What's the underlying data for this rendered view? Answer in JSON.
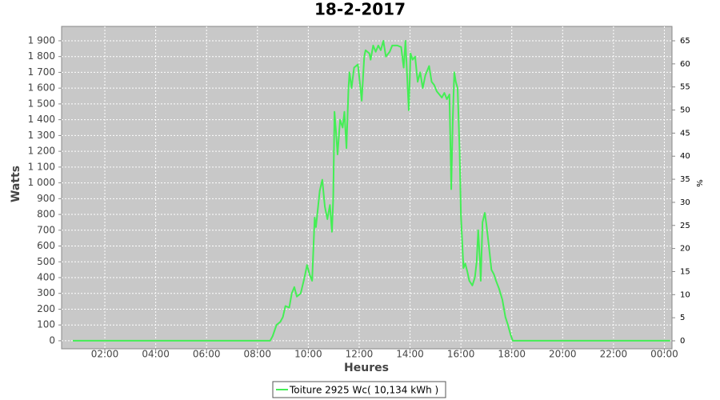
{
  "chart_data": {
    "type": "line",
    "title": "18-2-2017",
    "xlabel": "Heures",
    "ylabel": "Watts",
    "y2label": "%",
    "background": "#c8c8c8",
    "grid": true,
    "legend": "bottom",
    "xlim": [
      0.3,
      24.3
    ],
    "ylim": [
      -51,
      1991
    ],
    "y2lim": [
      -1.73,
      68.12
    ],
    "xticks": [
      {
        "value": 2,
        "label": "02:00"
      },
      {
        "value": 4,
        "label": "04:00"
      },
      {
        "value": 6,
        "label": "06:00"
      },
      {
        "value": 8,
        "label": "08:00"
      },
      {
        "value": 10,
        "label": "10:00"
      },
      {
        "value": 12,
        "label": "12:00"
      },
      {
        "value": 14,
        "label": "14:00"
      },
      {
        "value": 16,
        "label": "16:00"
      },
      {
        "value": 18,
        "label": "18:00"
      },
      {
        "value": 20,
        "label": "20:00"
      },
      {
        "value": 22,
        "label": "22:00"
      },
      {
        "value": 24,
        "label": "00:00"
      }
    ],
    "yticks": [
      0,
      100,
      200,
      300,
      400,
      500,
      600,
      700,
      800,
      900,
      {
        "value": 1000,
        "label": "1 000"
      },
      {
        "value": 1100,
        "label": "1 100"
      },
      {
        "value": 1200,
        "label": "1 200"
      },
      {
        "value": 1300,
        "label": "1 300"
      },
      {
        "value": 1400,
        "label": "1 400"
      },
      {
        "value": 1500,
        "label": "1 500"
      },
      {
        "value": 1600,
        "label": "1 600"
      },
      {
        "value": 1700,
        "label": "1 700"
      },
      {
        "value": 1800,
        "label": "1 800"
      },
      {
        "value": 1900,
        "label": "1 900"
      }
    ],
    "y2ticks": [
      0,
      5,
      10,
      15,
      20,
      25,
      30,
      35,
      40,
      45,
      50,
      55,
      60,
      65
    ],
    "x": [
      0.74,
      8.5,
      8.6,
      8.75,
      8.9,
      9.0,
      9.1,
      9.25,
      9.35,
      9.45,
      9.55,
      9.7,
      9.85,
      9.95,
      10.05,
      10.15,
      10.25,
      10.3,
      10.45,
      10.55,
      10.65,
      10.75,
      10.85,
      10.93,
      10.98,
      11.03,
      11.1,
      11.15,
      11.25,
      11.35,
      11.42,
      11.5,
      11.58,
      11.62,
      11.7,
      11.8,
      11.95,
      12.05,
      12.1,
      12.2,
      12.25,
      12.4,
      12.45,
      12.55,
      12.65,
      12.75,
      12.85,
      12.95,
      13.05,
      13.2,
      13.3,
      13.5,
      13.65,
      13.75,
      13.82,
      13.88,
      13.95,
      14.02,
      14.1,
      14.2,
      14.3,
      14.4,
      14.5,
      14.6,
      14.75,
      14.85,
      14.95,
      15.05,
      15.15,
      15.25,
      15.35,
      15.45,
      15.55,
      15.62,
      15.68,
      15.74,
      15.8,
      15.87,
      15.95,
      16.0,
      16.1,
      16.17,
      16.25,
      16.33,
      16.45,
      16.55,
      16.62,
      16.68,
      16.75,
      16.78,
      16.85,
      16.94,
      17.0,
      17.1,
      17.2,
      17.3,
      17.38,
      17.5,
      17.63,
      17.75,
      17.85,
      17.95,
      18.04,
      24.23
    ],
    "series": [
      {
        "name": "Toiture 2925 Wc( 10,134 kWh )",
        "color": "#44ee55",
        "values": [
          0,
          0,
          30,
          100,
          120,
          150,
          220,
          210,
          300,
          340,
          280,
          300,
          400,
          480,
          420,
          380,
          780,
          720,
          950,
          1020,
          850,
          770,
          860,
          690,
          900,
          1450,
          1300,
          1180,
          1400,
          1350,
          1450,
          1220,
          1600,
          1700,
          1600,
          1730,
          1750,
          1600,
          1520,
          1800,
          1840,
          1820,
          1780,
          1870,
          1830,
          1870,
          1840,
          1900,
          1800,
          1830,
          1870,
          1870,
          1860,
          1730,
          1900,
          1700,
          1460,
          1820,
          1780,
          1800,
          1640,
          1700,
          1600,
          1680,
          1740,
          1640,
          1620,
          1580,
          1560,
          1540,
          1570,
          1530,
          1560,
          960,
          1400,
          1700,
          1640,
          1600,
          1200,
          800,
          460,
          490,
          440,
          380,
          350,
          400,
          500,
          700,
          500,
          380,
          750,
          810,
          740,
          600,
          450,
          420,
          380,
          330,
          260,
          150,
          100,
          40,
          0,
          0
        ]
      }
    ]
  }
}
